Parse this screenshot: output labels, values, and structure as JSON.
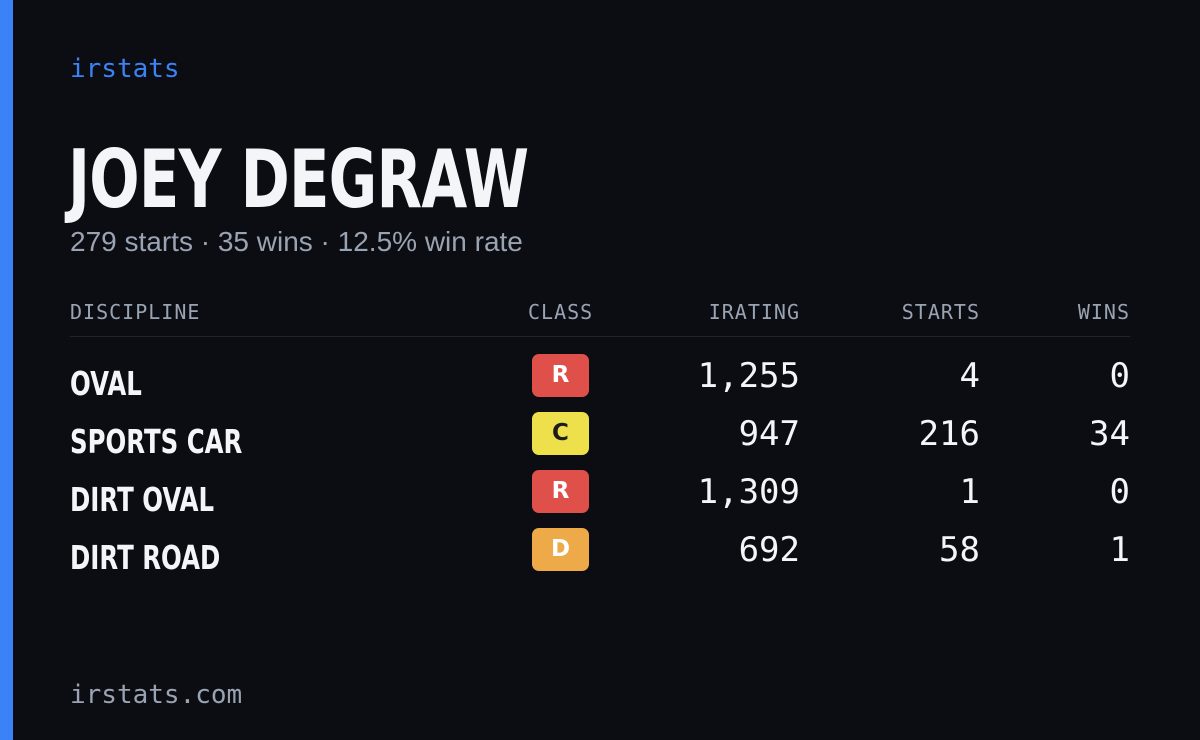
{
  "brand": "irstats",
  "driver": {
    "name": "JOEY DEGRAW",
    "summary": "279 starts · 35 wins · 12.5% win rate"
  },
  "table": {
    "headers": {
      "discipline": "DISCIPLINE",
      "class": "CLASS",
      "irating": "IRATING",
      "starts": "STARTS",
      "wins": "WINS"
    },
    "rows": [
      {
        "discipline": "OVAL",
        "class": "R",
        "class_color": "#e0504a",
        "class_text_color": "#ffffff",
        "irating": "1,255",
        "starts": "4",
        "wins": "0"
      },
      {
        "discipline": "SPORTS CAR",
        "class": "C",
        "class_color": "#eee04a",
        "class_text_color": "#1c1c1c",
        "irating": "947",
        "starts": "216",
        "wins": "34"
      },
      {
        "discipline": "DIRT OVAL",
        "class": "R",
        "class_color": "#e0504a",
        "class_text_color": "#ffffff",
        "irating": "1,309",
        "starts": "1",
        "wins": "0"
      },
      {
        "discipline": "DIRT ROAD",
        "class": "D",
        "class_color": "#eeaa48",
        "class_text_color": "#ffffff",
        "irating": "692",
        "starts": "58",
        "wins": "1"
      }
    ]
  },
  "footer": "irstats.com",
  "colors": {
    "accent": "#3b82f6",
    "background": "#0b0d13",
    "text_primary": "#f4f5f8",
    "text_muted": "#9aa3b2"
  }
}
